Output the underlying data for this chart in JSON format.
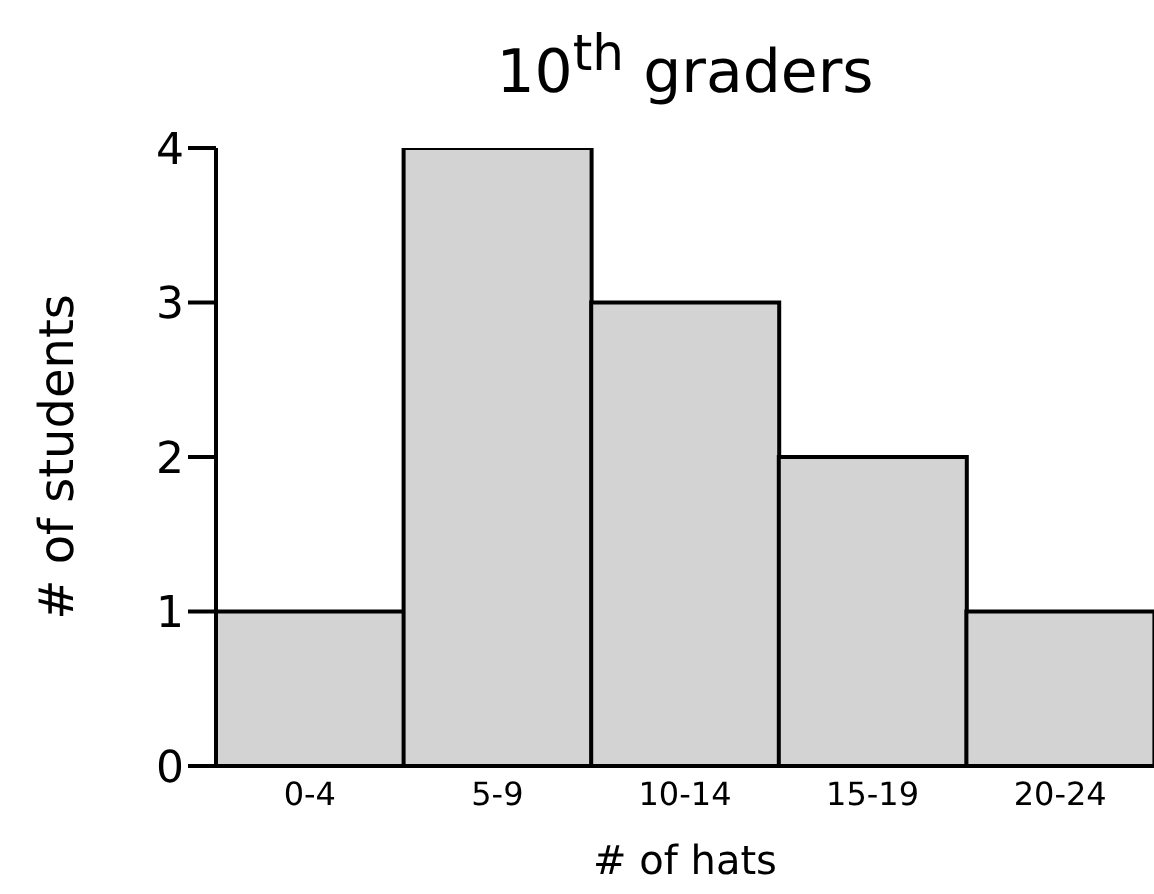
{
  "chart_data": {
    "type": "bar",
    "title": "10$^{th}$ graders",
    "xlabel": "# of hats",
    "ylabel": "# of students",
    "categories": [
      "0-4",
      "5-9",
      "10-14",
      "15-19",
      "20-24"
    ],
    "values": [
      1,
      4,
      3,
      2,
      1
    ],
    "color": "#d3d3d3",
    "ylim": [
      0,
      4
    ],
    "yticks": [
      0,
      1,
      2,
      3,
      4
    ]
  }
}
